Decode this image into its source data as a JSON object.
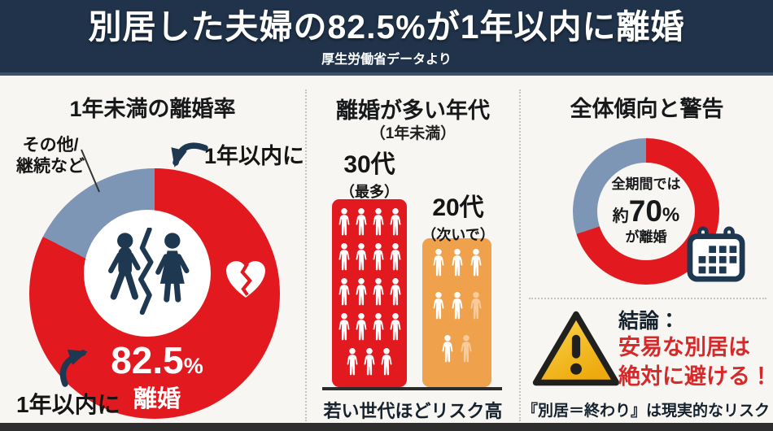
{
  "header": {
    "title": "別居した夫婦の82.5%が1年以内に離婚",
    "subtitle": "厚生労働省データより"
  },
  "colors": {
    "red": "#e2191f",
    "blue": "#7e96b6",
    "orange": "#f0a14c",
    "navy": "#1d3850",
    "bg": "#f8f6f3",
    "header_bg": "#20334a",
    "header_strip": "#3d5066",
    "alert_red": "#d62a2a",
    "text_dark": "#17181a",
    "divider": "#c8c4be",
    "baseline": "#2b2b2b",
    "bottom_bar": "#2e2e2e"
  },
  "panels": {
    "pie": {
      "title": "1年未満の離婚率",
      "other_label_line1": "その他/",
      "other_label_line2": "継続など",
      "arrow_label_top": "1年以内に",
      "arrow_label_bottom": "1年以内に",
      "center_value": "82.5",
      "center_unit": "%",
      "center_caption": "離婚"
    },
    "ages": {
      "title": "離婚が多い年代",
      "subtitle": "（1年未満）",
      "bars": [
        {
          "label": "30代",
          "sublabel": "（最多）",
          "color": "#e2191f",
          "icon_rows": [
            [
              1,
              1,
              1,
              1
            ],
            [
              1,
              1,
              1,
              1
            ],
            [
              1,
              1,
              1,
              1
            ],
            [
              1,
              1,
              1,
              1
            ],
            [
              1,
              1,
              1
            ]
          ]
        },
        {
          "label": "20代",
          "sublabel": "（次いで）",
          "color": "#f0a14c",
          "icon_rows": [
            [
              1,
              1,
              1
            ],
            [
              1,
              1,
              0.45
            ],
            [
              1,
              0.45
            ]
          ]
        }
      ],
      "caption": "若い世代ほどリスク高"
    },
    "overall": {
      "title": "全体傾向と警告",
      "donut_line1": "全期間では",
      "donut_prefix": "約",
      "donut_value": "70",
      "donut_unit": "%",
      "donut_line2": "が離婚",
      "conclusion_label": "結論：",
      "conclusion_line1": "安易な別居は",
      "conclusion_line2": "絶対に避ける！",
      "caption": "『別居＝終わり』は現実的なリスク"
    }
  },
  "chart_data": [
    {
      "type": "pie",
      "title": "1年未満の離婚率",
      "slices": [
        {
          "label": "1年以内に離婚",
          "value": 82.5,
          "color": "#e2191f"
        },
        {
          "label": "その他/継続など",
          "value": 17.5,
          "color": "#7e96b6"
        }
      ],
      "center_label": "82.5% 離婚",
      "legend_position": "callout-labels"
    },
    {
      "type": "pictogram-bar",
      "title": "離婚が多い年代（1年未満）",
      "categories": [
        "30代（最多）",
        "20代（次いで）"
      ],
      "values": [
        19,
        8
      ],
      "value_unit": "person-icons",
      "colors": [
        "#e2191f",
        "#f0a14c"
      ],
      "annotation": "若い世代ほどリスク高"
    },
    {
      "type": "donut",
      "title": "全体傾向",
      "slices": [
        {
          "label": "離婚",
          "value": 70,
          "color": "#e2191f"
        },
        {
          "label": "",
          "value": 30,
          "color": "#7e96b6"
        }
      ],
      "center_label": "全期間では約70%が離婚"
    }
  ]
}
